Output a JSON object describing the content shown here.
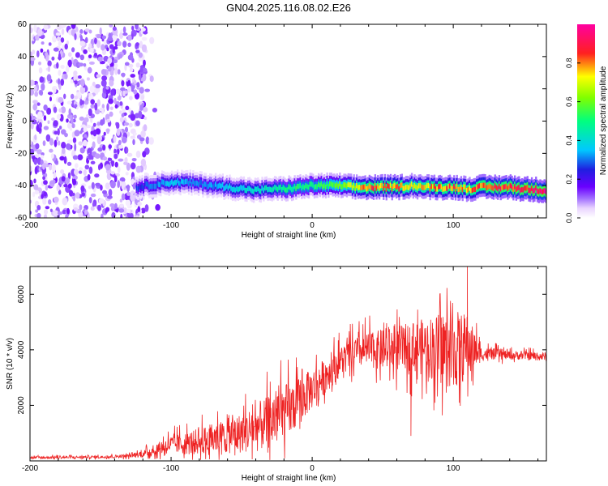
{
  "figure_title": "GN04.2025.116.08.02.E26",
  "colors": {
    "snr_line": "#ee2222",
    "axis": "#000000",
    "background": "#ffffff",
    "colormap": [
      "#ffffff",
      "#e9d4ff",
      "#c9a3ff",
      "#8a2be2",
      "#1f1fe0",
      "#00c8ff",
      "#00ff7f",
      "#ffff00",
      "#ff2020",
      "#ff00a0"
    ]
  },
  "chart_data": [
    {
      "type": "heatmap",
      "title": "",
      "xlabel": "Height of straight line (km)",
      "ylabel": "Frequency (Hz)",
      "xlim": [
        -200,
        166
      ],
      "ylim": [
        -60,
        60
      ],
      "x_ticks": [
        -200,
        -100,
        0,
        100
      ],
      "y_ticks": [
        -60,
        -40,
        -20,
        0,
        20,
        40,
        60
      ],
      "x_tick_labels": [
        "-200",
        "-100",
        "0",
        "100"
      ],
      "y_tick_labels": [
        "-60",
        "-40",
        "-20",
        "0",
        "20",
        "40",
        "60"
      ],
      "colorbar": {
        "label": "Normalized spectral amplitude",
        "range": [
          0,
          1
        ],
        "ticks": [
          0.0,
          0.2,
          0.4,
          0.6,
          0.8
        ],
        "tick_labels": [
          "0.0",
          "0.2",
          "0.4",
          "0.6",
          "0.8"
        ]
      },
      "noise_region": {
        "x_range": [
          -200,
          -118
        ],
        "y_range": [
          -60,
          60
        ],
        "amplitude_range": [
          0.02,
          0.15
        ]
      },
      "signal_ridge": {
        "x": [
          -125,
          -110,
          -100,
          -90,
          -80,
          -70,
          -60,
          -50,
          -40,
          -30,
          -20,
          -10,
          0,
          10,
          20,
          30,
          40,
          50,
          60,
          70,
          80,
          90,
          100,
          110,
          120,
          130,
          140,
          150,
          166
        ],
        "frequency": [
          -41,
          -39,
          -38,
          -38,
          -39,
          -40,
          -41,
          -42,
          -43,
          -42,
          -42,
          -41,
          -40,
          -40,
          -40,
          -41,
          -41,
          -41,
          -41,
          -40,
          -41,
          -41,
          -41,
          -42,
          -41,
          -41,
          -41,
          -42,
          -43
        ],
        "amplitude": [
          0.25,
          0.32,
          0.35,
          0.33,
          0.3,
          0.32,
          0.38,
          0.4,
          0.4,
          0.42,
          0.48,
          0.5,
          0.5,
          0.55,
          0.6,
          0.7,
          0.82,
          0.8,
          0.82,
          0.7,
          0.75,
          0.8,
          0.82,
          0.76,
          0.84,
          0.86,
          0.88,
          0.9,
          0.92
        ]
      },
      "grid": false
    },
    {
      "type": "line",
      "title": "",
      "xlabel": "Height of straight line (km)",
      "ylabel": "SNR (10 * v/v)",
      "xlim": [
        -200,
        166
      ],
      "ylim": [
        0,
        7000
      ],
      "x_ticks": [
        -200,
        -100,
        0,
        100
      ],
      "y_ticks": [
        2000,
        4000,
        6000
      ],
      "x_tick_labels": [
        "-200",
        "-100",
        "0",
        "100"
      ],
      "y_tick_labels": [
        "2000",
        "4000",
        "6000"
      ],
      "series": [
        {
          "color": "#ee2222",
          "x": [
            -200,
            -190,
            -180,
            -170,
            -160,
            -150,
            -140,
            -130,
            -120,
            -110,
            -100,
            -90,
            -80,
            -70,
            -60,
            -50,
            -40,
            -30,
            -20,
            -10,
            0,
            10,
            20,
            30,
            40,
            50,
            60,
            70,
            80,
            90,
            100,
            110,
            120,
            130,
            140,
            150,
            166
          ],
          "baseline": [
            120,
            120,
            130,
            130,
            140,
            140,
            160,
            180,
            250,
            420,
            600,
            620,
            700,
            800,
            900,
            1000,
            1200,
            1400,
            1700,
            2100,
            2600,
            3100,
            3600,
            3900,
            4000,
            4000,
            4050,
            4100,
            4100,
            4050,
            4000,
            4100,
            3850,
            3850,
            3800,
            3800,
            3750
          ],
          "amplitude": [
            60,
            60,
            60,
            60,
            60,
            60,
            70,
            80,
            150,
            300,
            400,
            500,
            600,
            700,
            800,
            900,
            1100,
            1200,
            1300,
            1100,
            900,
            800,
            700,
            700,
            800,
            900,
            1000,
            1100,
            1300,
            1600,
            1800,
            1500,
            300,
            250,
            200,
            200,
            200
          ]
        }
      ],
      "annotations": [
        {
          "x": 70,
          "y": 900,
          "text": ""
        },
        {
          "x": 110,
          "y": 7000,
          "text": ""
        }
      ],
      "grid": false
    }
  ]
}
